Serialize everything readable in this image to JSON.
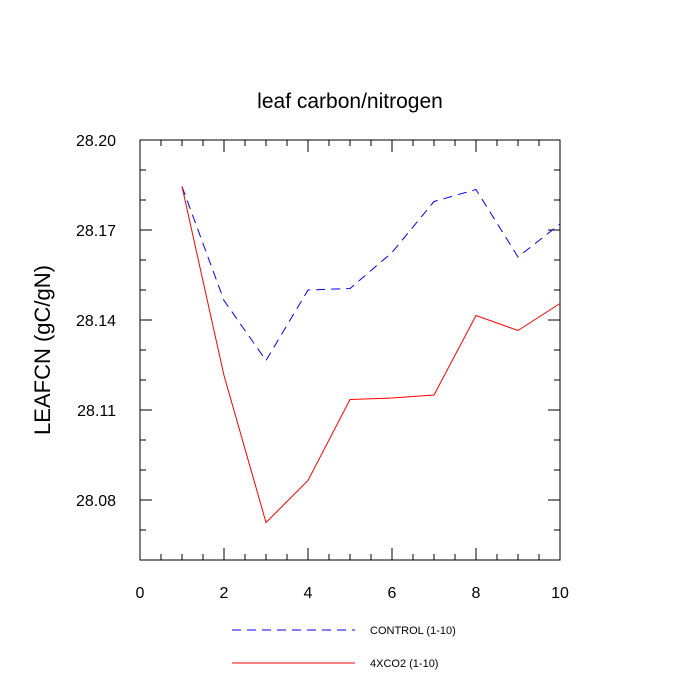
{
  "chart_data": {
    "type": "line",
    "title": "leaf carbon/nitrogen",
    "xlabel": "",
    "ylabel": "LEAFCN  (gC/gN)",
    "xlim": [
      0,
      10
    ],
    "ylim": [
      28.06,
      28.2
    ],
    "x_ticks": [
      0,
      2,
      4,
      6,
      8,
      10
    ],
    "x_tick_labels": [
      "0",
      "2",
      "4",
      "6",
      "8",
      "10"
    ],
    "y_ticks": [
      28.08,
      28.11,
      28.14,
      28.17,
      28.2
    ],
    "y_tick_labels": [
      "28.08",
      "28.11",
      "28.14",
      "28.17",
      "28.20"
    ],
    "x": [
      1,
      2,
      3,
      4,
      5,
      6,
      7,
      8,
      9,
      10
    ],
    "series": [
      {
        "name": "CONTROL (1-10)",
        "color": "#0000ff",
        "dash": "dashed",
        "values": [
          28.1845,
          28.1465,
          28.1265,
          28.15,
          28.1505,
          28.1625,
          28.1795,
          28.1835,
          28.161,
          28.172
        ]
      },
      {
        "name": "4XCO2 (1-10)",
        "color": "#ff0000",
        "dash": "solid",
        "values": [
          28.1845,
          28.1215,
          28.0725,
          28.0865,
          28.1135,
          28.114,
          28.115,
          28.1415,
          28.1365,
          28.1455
        ]
      }
    ],
    "legend_position": "bottom-center"
  }
}
